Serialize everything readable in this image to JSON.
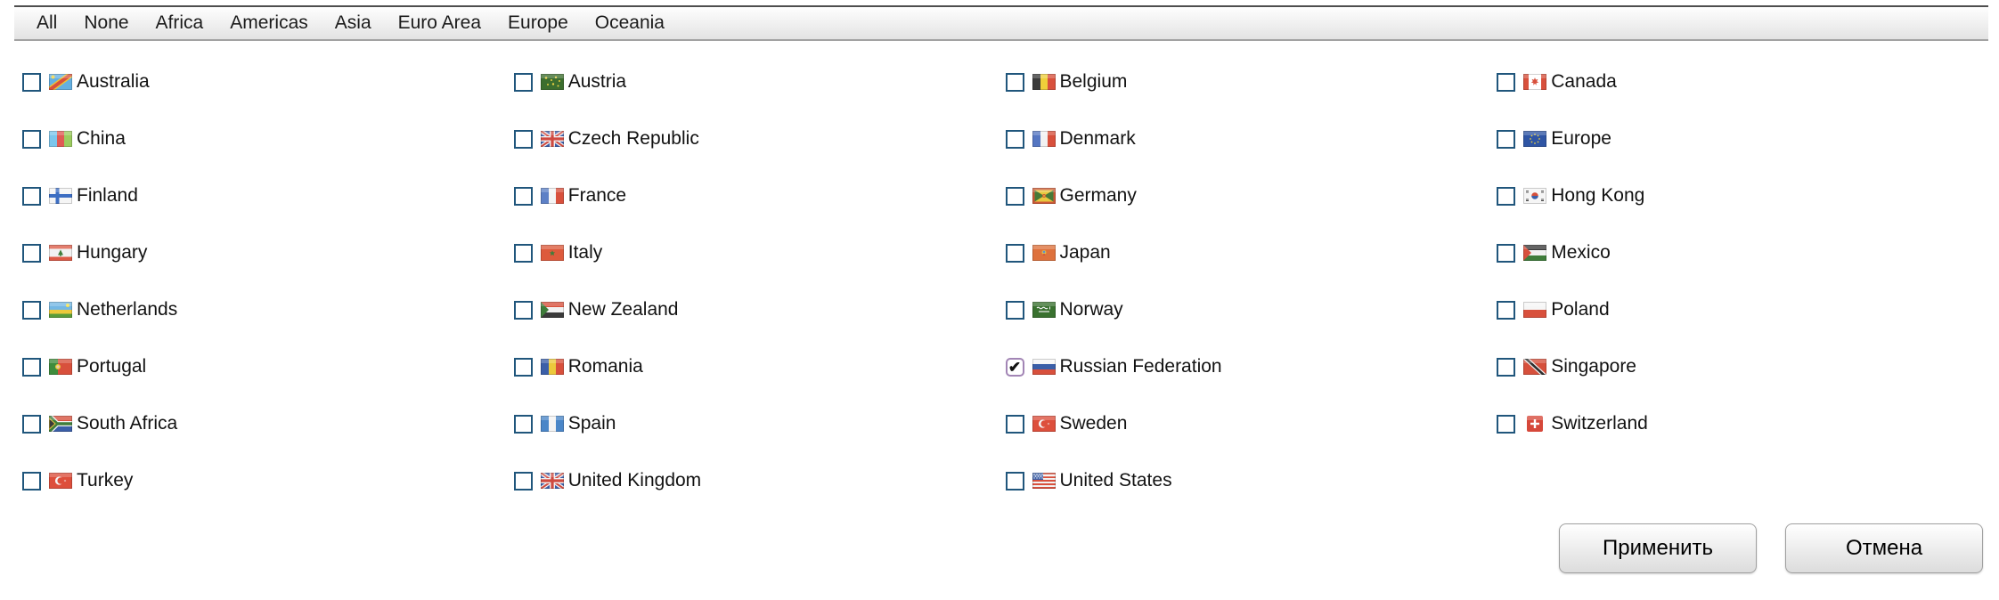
{
  "toolbar": {
    "items": [
      {
        "id": "all",
        "label": "All"
      },
      {
        "id": "none",
        "label": "None"
      },
      {
        "id": "africa",
        "label": "Africa"
      },
      {
        "id": "americas",
        "label": "Americas"
      },
      {
        "id": "asia",
        "label": "Asia"
      },
      {
        "id": "euro-area",
        "label": "Euro Area"
      },
      {
        "id": "europe",
        "label": "Europe"
      },
      {
        "id": "oceania",
        "label": "Oceania"
      }
    ]
  },
  "countries": [
    {
      "name": "Australia",
      "checked": false,
      "icon": "australia-flag-icon"
    },
    {
      "name": "Austria",
      "checked": false,
      "icon": "austria-flag-icon"
    },
    {
      "name": "Belgium",
      "checked": false,
      "icon": "belgium-flag-icon"
    },
    {
      "name": "Canada",
      "checked": false,
      "icon": "canada-flag-icon"
    },
    {
      "name": "China",
      "checked": false,
      "icon": "china-flag-icon"
    },
    {
      "name": "Czech Republic",
      "checked": false,
      "icon": "czech-republic-flag-icon"
    },
    {
      "name": "Denmark",
      "checked": false,
      "icon": "denmark-flag-icon"
    },
    {
      "name": "Europe",
      "checked": false,
      "icon": "europe-flag-icon"
    },
    {
      "name": "Finland",
      "checked": false,
      "icon": "finland-flag-icon"
    },
    {
      "name": "France",
      "checked": false,
      "icon": "france-flag-icon"
    },
    {
      "name": "Germany",
      "checked": false,
      "icon": "germany-flag-icon"
    },
    {
      "name": "Hong Kong",
      "checked": false,
      "icon": "hong-kong-flag-icon"
    },
    {
      "name": "Hungary",
      "checked": false,
      "icon": "hungary-flag-icon"
    },
    {
      "name": "Italy",
      "checked": false,
      "icon": "italy-flag-icon"
    },
    {
      "name": "Japan",
      "checked": false,
      "icon": "japan-flag-icon"
    },
    {
      "name": "Mexico",
      "checked": false,
      "icon": "mexico-flag-icon"
    },
    {
      "name": "Netherlands",
      "checked": false,
      "icon": "netherlands-flag-icon"
    },
    {
      "name": "New Zealand",
      "checked": false,
      "icon": "new-zealand-flag-icon"
    },
    {
      "name": "Norway",
      "checked": false,
      "icon": "norway-flag-icon"
    },
    {
      "name": "Poland",
      "checked": false,
      "icon": "poland-flag-icon"
    },
    {
      "name": "Portugal",
      "checked": false,
      "icon": "portugal-flag-icon"
    },
    {
      "name": "Romania",
      "checked": false,
      "icon": "romania-flag-icon"
    },
    {
      "name": "Russian Federation",
      "checked": true,
      "icon": "russian-federation-flag-icon"
    },
    {
      "name": "Singapore",
      "checked": false,
      "icon": "singapore-flag-icon"
    },
    {
      "name": "South Africa",
      "checked": false,
      "icon": "south-africa-flag-icon"
    },
    {
      "name": "Spain",
      "checked": false,
      "icon": "spain-flag-icon"
    },
    {
      "name": "Sweden",
      "checked": false,
      "icon": "sweden-flag-icon"
    },
    {
      "name": "Switzerland",
      "checked": false,
      "icon": "switzerland-flag-icon"
    },
    {
      "name": "Turkey",
      "checked": false,
      "icon": "turkey-flag-icon"
    },
    {
      "name": "United Kingdom",
      "checked": false,
      "icon": "united-kingdom-flag-icon"
    },
    {
      "name": "United States",
      "checked": false,
      "icon": "united-states-flag-icon"
    }
  ],
  "footer": {
    "apply_label": "Применить",
    "cancel_label": "Отмена"
  },
  "colors": {
    "checkbox_border": "#20567c",
    "checked_checkbox_border": "#a285b5",
    "toolbar_top_border": "#4e4e4e",
    "toolbar_bottom_border": "#a2a2a2",
    "button_border": "#a0a0a0"
  },
  "checkmark_glyph": "✔"
}
